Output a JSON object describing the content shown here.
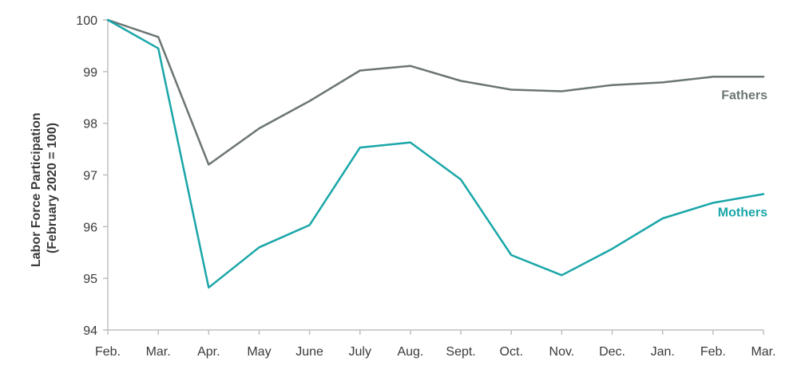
{
  "chart_data": {
    "type": "line",
    "title": "",
    "xlabel": "",
    "ylabel": [
      "Labor Force Participation",
      "(February 2020 = 100)"
    ],
    "ylim": [
      94,
      100
    ],
    "yticks": [
      94,
      95,
      96,
      97,
      98,
      99,
      100
    ],
    "grid": false,
    "categories": [
      "Feb.",
      "Mar.",
      "Apr.",
      "May",
      "June",
      "July",
      "Aug.",
      "Sept.",
      "Oct.",
      "Nov.",
      "Dec.",
      "Jan.",
      "Feb.",
      "Mar."
    ],
    "series": [
      {
        "name": "Fathers",
        "color": "#6b7574",
        "values": [
          100,
          99.67,
          97.2,
          97.9,
          98.43,
          99.02,
          99.11,
          98.82,
          98.65,
          98.62,
          98.74,
          98.79,
          98.9,
          98.9
        ]
      },
      {
        "name": "Mothers",
        "color": "#1aa6a8",
        "values": [
          100,
          99.45,
          94.82,
          95.6,
          96.03,
          97.53,
          97.63,
          96.91,
          95.45,
          95.06,
          95.57,
          96.16,
          96.46,
          96.63
        ]
      }
    ]
  }
}
